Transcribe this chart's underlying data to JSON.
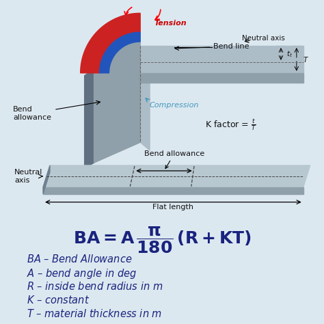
{
  "background_color": "#dce8f0",
  "formula_color": "#1a237e",
  "label_color": "#111111",
  "tension_color": "#cc0000",
  "compression_color": "#4499bb",
  "red_fill": "#cc2222",
  "blue_fill": "#2255bb",
  "gray_light": "#b0bec5",
  "gray_mid": "#8fa0aa",
  "gray_dark": "#607080",
  "definitions": [
    "$\\mathit{BA}$ – Bend Allowance",
    "$\\mathit{A}$ – bend angle in deg",
    "$\\mathit{R}$ – inside bend radius in m",
    "$\\mathit{K}$ – constant",
    "$\\mathit{T}$ – material thickness in m"
  ],
  "def_fontsize": 10.5,
  "formula_fontsize": 18
}
